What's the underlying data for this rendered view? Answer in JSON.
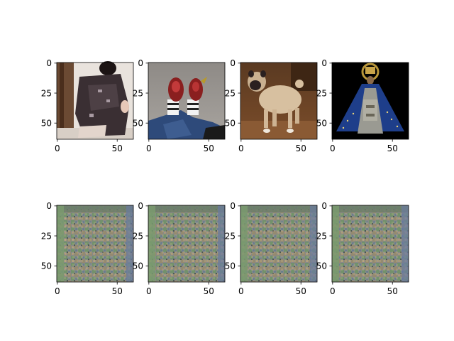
{
  "figure": {
    "rows": [
      {
        "row_id": "input",
        "panels": [
          {
            "content": "person-sitting-photo"
          },
          {
            "content": "red-shoes-photo"
          },
          {
            "content": "pug-dog-photo"
          },
          {
            "content": "religious-statue-photo"
          }
        ]
      },
      {
        "row_id": "output",
        "panels": [
          {
            "content": "checkerboard-artifact-output"
          },
          {
            "content": "checkerboard-artifact-output"
          },
          {
            "content": "checkerboard-artifact-output"
          },
          {
            "content": "checkerboard-artifact-output"
          }
        ]
      }
    ],
    "x_ticks": [
      "0",
      "50"
    ],
    "y_ticks": [
      "0",
      "25",
      "50"
    ],
    "x_tick_values": [
      0,
      50
    ],
    "y_tick_values": [
      0,
      25,
      50
    ],
    "extent": [
      -0.5,
      63.5
    ],
    "colors": {
      "artifact_purple": "#8a7a99",
      "artifact_green": "#6b9e5c",
      "artifact_orange": "#b8845a",
      "artifact_blue": "#5a6d9e",
      "artifact_pink": "#a87a8a"
    }
  }
}
